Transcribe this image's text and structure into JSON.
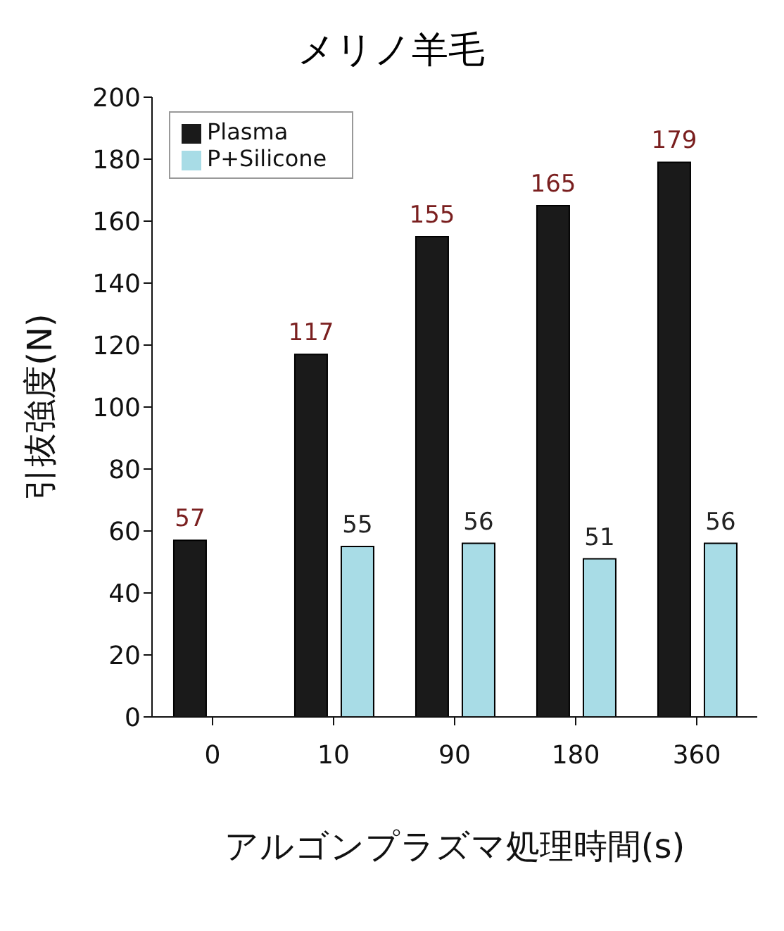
{
  "chart_data": {
    "type": "bar",
    "title": "メリノ羊毛",
    "xlabel": "アルゴンプラズマ処理時間(s)",
    "ylabel": "引抜強度(N)",
    "categories": [
      "0",
      "10",
      "90",
      "180",
      "360"
    ],
    "series": [
      {
        "name": "Plasma",
        "color": "#1a1a1a",
        "values": [
          57,
          117,
          155,
          165,
          179
        ]
      },
      {
        "name": "P+Silicone",
        "color": "#a8dce6",
        "values": [
          null,
          55,
          56,
          51,
          56
        ]
      }
    ],
    "ylim": [
      0,
      200
    ],
    "yticks": [
      0,
      20,
      40,
      60,
      80,
      100,
      120,
      140,
      160,
      180,
      200
    ],
    "grid": false,
    "legend": "top left",
    "data_labels": true
  }
}
